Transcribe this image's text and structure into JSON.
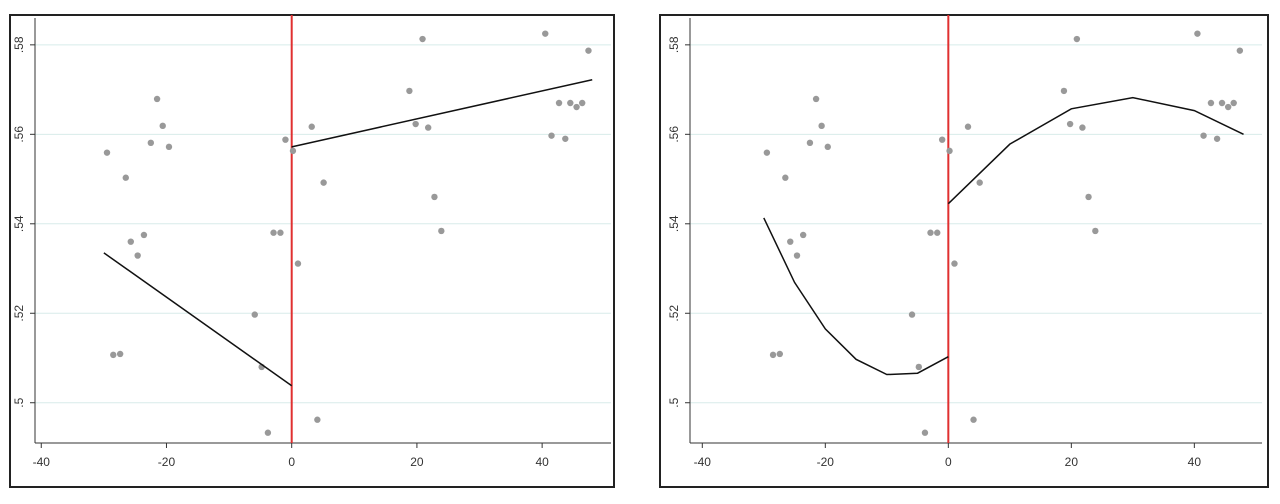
{
  "chart_data": [
    {
      "type": "scatter",
      "xlim": [
        -41,
        51
      ],
      "ylim": [
        0.491,
        0.586
      ],
      "xticks": [
        -40,
        -20,
        0,
        20,
        40
      ],
      "yticks": [
        {
          "value": 0.5,
          "label": ".5"
        },
        {
          "value": 0.52,
          "label": ".52"
        },
        {
          "value": 0.54,
          "label": ".54"
        },
        {
          "value": 0.56,
          "label": ".56"
        },
        {
          "value": 0.58,
          "label": ".58"
        }
      ],
      "grid": true,
      "cutoff": 0,
      "cutoff_color": "#e03030",
      "series": [
        {
          "style": "points",
          "color": "#999999",
          "x": [
            -29.5,
            -26.5,
            -21.5,
            -20.6,
            -19.6,
            -22.5,
            -25.7,
            -23.6,
            -24.6,
            -28.5,
            -27.4,
            -5.9,
            -4.8,
            -3.8,
            -2.9,
            -1.8,
            -1.0,
            0.2,
            1.0,
            3.2,
            5.1,
            4.1,
            18.8,
            19.8,
            20.9,
            21.8,
            22.8,
            23.9,
            40.5,
            41.5,
            42.7,
            43.7,
            44.5,
            45.5,
            46.4,
            47.4
          ],
          "values": [
            0.5559,
            0.5503,
            0.5679,
            0.5619,
            0.5572,
            0.5581,
            0.536,
            0.5375,
            0.5329,
            0.5107,
            0.5109,
            0.5197,
            0.508,
            0.4933,
            0.538,
            0.538,
            0.5588,
            0.5563,
            0.5311,
            0.5617,
            0.5492,
            0.4962,
            0.5697,
            0.5623,
            0.5813,
            0.5615,
            0.546,
            0.5384,
            0.5825,
            0.5597,
            0.567,
            0.559,
            0.567,
            0.5661,
            0.567,
            0.5787
          ]
        },
        {
          "style": "line",
          "color": "#111111",
          "x": [
            -30,
            0
          ],
          "values": [
            0.5335,
            0.5038
          ]
        },
        {
          "style": "line",
          "color": "#111111",
          "x": [
            0,
            48
          ],
          "values": [
            0.5572,
            0.5722
          ]
        }
      ]
    },
    {
      "type": "scatter",
      "xlim": [
        -42,
        51
      ],
      "ylim": [
        0.491,
        0.586
      ],
      "xticks": [
        -40,
        -20,
        0,
        20,
        40
      ],
      "yticks": [
        {
          "value": 0.5,
          "label": ".5"
        },
        {
          "value": 0.52,
          "label": ".52"
        },
        {
          "value": 0.54,
          "label": ".54"
        },
        {
          "value": 0.56,
          "label": ".56"
        },
        {
          "value": 0.58,
          "label": ".58"
        }
      ],
      "grid": true,
      "cutoff": 0,
      "cutoff_color": "#e03030",
      "series": [
        {
          "style": "points",
          "color": "#999999",
          "x": [
            -29.5,
            -26.5,
            -21.5,
            -20.6,
            -19.6,
            -22.5,
            -25.7,
            -23.6,
            -24.6,
            -28.5,
            -27.4,
            -5.9,
            -4.8,
            -3.8,
            -2.9,
            -1.8,
            -1.0,
            0.2,
            1.0,
            3.2,
            5.1,
            4.1,
            18.8,
            19.8,
            20.9,
            21.8,
            22.8,
            23.9,
            40.5,
            41.5,
            42.7,
            43.7,
            44.5,
            45.5,
            46.4,
            47.4
          ],
          "values": [
            0.5559,
            0.5503,
            0.5679,
            0.5619,
            0.5572,
            0.5581,
            0.536,
            0.5375,
            0.5329,
            0.5107,
            0.5109,
            0.5197,
            0.508,
            0.4933,
            0.538,
            0.538,
            0.5588,
            0.5563,
            0.5311,
            0.5617,
            0.5492,
            0.4962,
            0.5697,
            0.5623,
            0.5813,
            0.5615,
            0.546,
            0.5384,
            0.5825,
            0.5597,
            0.567,
            0.559,
            0.567,
            0.5661,
            0.567,
            0.5787
          ]
        },
        {
          "style": "line",
          "color": "#111111",
          "x": [
            -30,
            -25,
            -20,
            -15,
            -10,
            -5,
            0
          ],
          "values": [
            0.5413,
            0.5269,
            0.5165,
            0.5097,
            0.5063,
            0.5066,
            0.5103
          ]
        },
        {
          "style": "line",
          "color": "#111111",
          "x": [
            0,
            10,
            20,
            30,
            40,
            48
          ],
          "values": [
            0.5445,
            0.5578,
            0.5657,
            0.5682,
            0.5653,
            0.56
          ]
        }
      ]
    }
  ]
}
